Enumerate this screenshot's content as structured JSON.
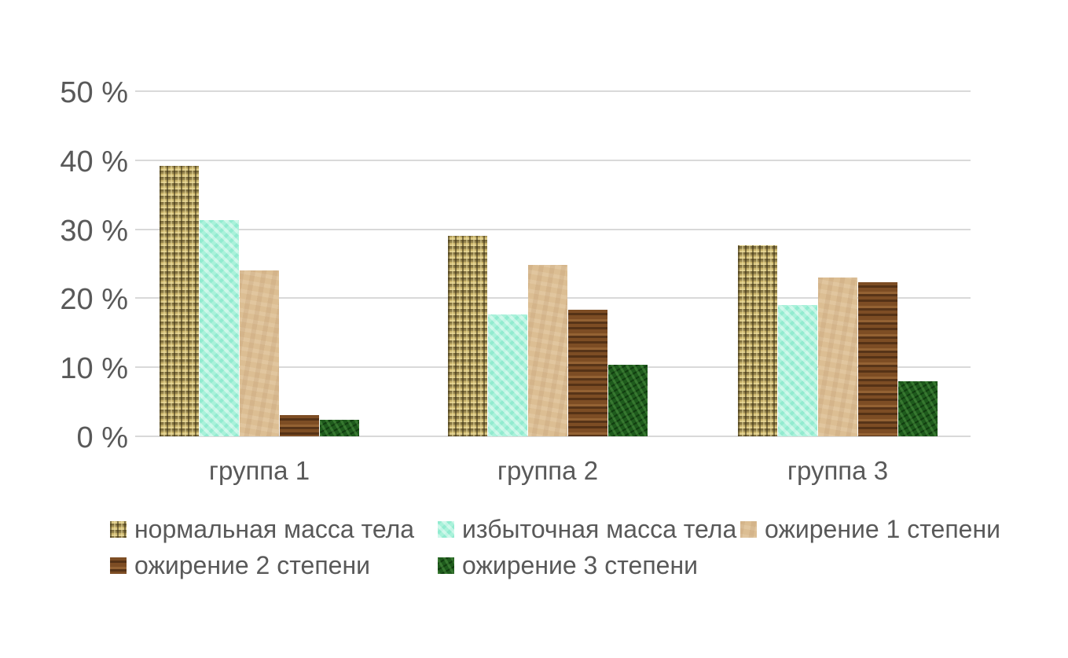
{
  "chart_data": {
    "type": "bar",
    "title": "",
    "xlabel": "",
    "ylabel": "",
    "unit": "%",
    "ylim": [
      0,
      50
    ],
    "grid": true,
    "legend_position": "bottom",
    "y_ticks": [
      "50 %",
      "40 %",
      "30 %",
      "20 %",
      "10 %",
      "0 %"
    ],
    "y_tick_values": [
      50,
      40,
      30,
      20,
      10,
      0
    ],
    "categories": [
      "группа 1",
      "группа 2",
      "группа 3"
    ],
    "series": [
      {
        "name": "нормальная масса тела",
        "color": "#c9b36a",
        "texture": "khaki-basket-weave",
        "values": [
          39.2,
          29.0,
          27.7
        ]
      },
      {
        "name": "избыточная масса тела",
        "color": "#a9f2da",
        "texture": "aquamarine-check",
        "values": [
          31.3,
          17.7,
          19.0
        ]
      },
      {
        "name": "ожирение 1 степени",
        "color": "#dcbe93",
        "texture": "tan-paper",
        "values": [
          24.0,
          24.8,
          23.0
        ]
      },
      {
        "name": "ожирение 2 степени",
        "color": "#7d4d24",
        "texture": "brown-wood-grain",
        "values": [
          3.1,
          18.3,
          22.3
        ]
      },
      {
        "name": "ожирение 3 степени",
        "color": "#1e5a1c",
        "texture": "dark-green-mottled",
        "values": [
          2.4,
          10.4,
          8.0
        ]
      }
    ]
  },
  "colors": {
    "background": "#ffffff",
    "text": "#595959",
    "gridline": "#d9d9d9"
  }
}
